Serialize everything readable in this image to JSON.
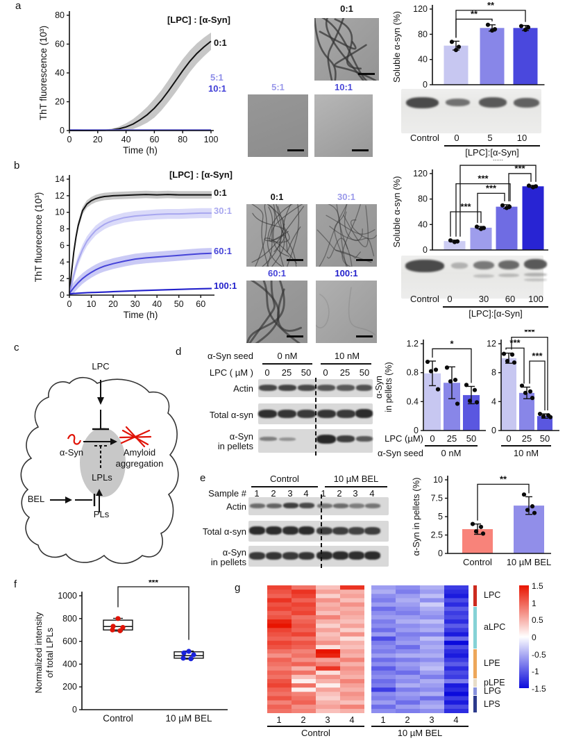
{
  "panel_a": {
    "label": "a",
    "legend": "[LPC] : [α-Syn]",
    "curve_labels": [
      "0:1",
      "5:1",
      "10:1"
    ],
    "em_labels": [
      "0:1",
      "5:1",
      "10:1"
    ],
    "gel_lanes": [
      "Control",
      "0",
      "5",
      "10"
    ],
    "gel_xlabel": "[LPC]:[α-Syn]"
  },
  "panel_b": {
    "label": "b",
    "legend": "[LPC] : [α-Syn]",
    "curve_labels": [
      "0:1",
      "30:1",
      "60:1",
      "100:1"
    ],
    "em_labels": [
      "0:1",
      "30:1",
      "60:1",
      "100:1"
    ],
    "gel_lanes": [
      "Control",
      "0",
      "30",
      "60",
      "100"
    ],
    "gel_xlabel": "[LPC]:[α-Syn]"
  },
  "panel_c": {
    "label": "c",
    "lpc": "LPC",
    "asyn": "α-Syn",
    "amyloid_1": "Amyloid",
    "amyloid_2": "aggregation",
    "lpls": "LPLs",
    "bel": "BEL",
    "pls": "PLs"
  },
  "panel_d": {
    "label": "d",
    "seed_label": "α-Syn seed",
    "groups": [
      "0 nM",
      "10 nM"
    ],
    "lpc_label": "LPC ( µM )",
    "doses": [
      "0",
      "25",
      "50",
      "0",
      "25",
      "50"
    ],
    "rows": [
      "Actin",
      "Total α-syn",
      "α-Syn",
      "in pellets"
    ],
    "axis_lpc": "LPC (µM)",
    "axis_doses": [
      "0",
      "25",
      "50",
      "0",
      "25",
      "50"
    ],
    "axis_seed": "α-Syn seed",
    "axis_groups": [
      "0 nM",
      "10 nM"
    ]
  },
  "panel_e": {
    "label": "e",
    "groups": [
      "Control",
      "10 µM BEL"
    ],
    "sample_label": "Sample #",
    "sample_nums": [
      "1",
      "2",
      "3",
      "4",
      "1",
      "2",
      "3",
      "4"
    ],
    "rows": [
      "Actin",
      "Total α-syn",
      "α-Syn",
      "in pellets"
    ]
  },
  "panel_f": {
    "label": "f"
  },
  "panel_g": {
    "label": "g",
    "col_nums": [
      "1",
      "2",
      "3",
      "4",
      "1",
      "2",
      "3",
      "4"
    ],
    "groups": [
      "Control",
      "10 µM BEL"
    ],
    "row_groups": [
      {
        "name": "LPC",
        "rows": 5,
        "color": "#cc2a1e"
      },
      {
        "name": "aLPC",
        "rows": 10,
        "color": "#85d2d6"
      },
      {
        "name": "LPE",
        "rows": 7,
        "color": "#eda75a"
      },
      {
        "name": "pLPE",
        "rows": 2,
        "color": "#e8ddc8"
      },
      {
        "name": "LPG",
        "rows": 2,
        "color": "#8892dd"
      },
      {
        "name": "LPS",
        "rows": 4,
        "color": "#2c3a8c"
      }
    ],
    "colorbar_ticks": [
      "1.5",
      "1",
      "0.5",
      "0",
      "-0.5",
      "-1",
      "-1.5"
    ]
  },
  "chart_data": [
    {
      "id": "tht_a",
      "type": "line",
      "title": "",
      "xlabel": "Time (h)",
      "ylabel": "ThT fluorescence (10³)",
      "legend": "[LPC] : [α-Syn]",
      "xlim": [
        0,
        100
      ],
      "ylim": [
        0,
        80
      ],
      "xticks": [
        0,
        20,
        40,
        60,
        80,
        100
      ],
      "yticks": [
        0,
        20,
        40,
        60,
        80
      ],
      "x": [
        0,
        5,
        10,
        15,
        20,
        25,
        30,
        35,
        40,
        45,
        50,
        55,
        60,
        65,
        70,
        75,
        80,
        85,
        90,
        95,
        100
      ],
      "series": [
        {
          "name": "0:1",
          "color": "#111111",
          "band_color": "rgba(0,0,0,0.22)",
          "band": [
            0.2,
            0.2,
            0.2,
            0.2,
            0.3,
            0.5,
            0.8,
            1.5,
            2.5,
            3.5,
            4.5,
            5.5,
            6.5,
            7,
            7.5,
            8,
            8,
            7.5,
            7,
            6.5,
            6
          ],
          "values": [
            0,
            0,
            0,
            0,
            0.1,
            0.2,
            0.5,
            1.2,
            2.5,
            4.5,
            7.5,
            11,
            15.5,
            21,
            27.5,
            34.5,
            41.5,
            48,
            53.5,
            58,
            62
          ]
        },
        {
          "name": "5:1",
          "color": "#8d8de8",
          "band_color": "rgba(120,120,230,0.25)",
          "band": 0.15,
          "values": [
            0.5,
            0.5,
            0.45,
            0.45,
            0.45,
            0.45,
            0.4,
            0.4,
            0.4,
            0.4,
            0.4,
            0.4,
            0.4,
            0.4,
            0.4,
            0.4,
            0.4,
            0.4,
            0.4,
            0.4,
            0.4
          ]
        },
        {
          "name": "10:1",
          "color": "#3f3dd6",
          "band_color": "rgba(60,60,210,0.25)",
          "band": 0.1,
          "values": [
            0.2,
            0.2,
            0.2,
            0.2,
            0.2,
            0.2,
            0.2,
            0.2,
            0.2,
            0.2,
            0.2,
            0.2,
            0.2,
            0.2,
            0.2,
            0.2,
            0.2,
            0.2,
            0.2,
            0.2,
            0.2
          ]
        }
      ]
    },
    {
      "id": "bar_a",
      "type": "bar",
      "ylabel": "Soluble α-syn (%)",
      "ylim": [
        0,
        120
      ],
      "yticks": [
        "0",
        "40",
        "80",
        "120"
      ],
      "values": [
        62,
        90,
        90
      ],
      "errors": [
        7,
        5,
        4
      ],
      "dots": [
        [
          68,
          60,
          55
        ],
        [
          95,
          88,
          86
        ],
        [
          93,
          91,
          87
        ]
      ],
      "colors": [
        "#c7c7f1",
        "#8886e8",
        "#4a48dd"
      ],
      "sig": [
        {
          "a": 0,
          "b": 1,
          "label": "**",
          "y": 104
        },
        {
          "a": 0,
          "b": 2,
          "label": "**",
          "y": 118
        }
      ]
    },
    {
      "id": "tht_b",
      "type": "line",
      "xlabel": "Time (h)",
      "ylabel": "ThT fluorecence (10³)",
      "legend": "[LPC] : [α-Syn]",
      "xlim": [
        0,
        65
      ],
      "ylim": [
        0,
        14
      ],
      "xticks": [
        0,
        10,
        20,
        30,
        40,
        50,
        60
      ],
      "yticks": [
        0,
        2,
        4,
        6,
        8,
        10,
        12,
        14
      ],
      "x": [
        0,
        1,
        2,
        3,
        4,
        6,
        8,
        10,
        12,
        14,
        16,
        18,
        20,
        25,
        30,
        35,
        40,
        45,
        50,
        55,
        60,
        65
      ],
      "series": [
        {
          "name": "0:1",
          "color": "#111111",
          "band_color": "rgba(0,0,0,0.22)",
          "band": 0.45,
          "values": [
            0.3,
            2.8,
            5.2,
            7.0,
            8.4,
            10.2,
            11.0,
            11.4,
            11.65,
            11.8,
            11.9,
            11.95,
            12.0,
            12.05,
            12.1,
            12.15,
            12.1,
            12.15,
            12.1,
            12.1,
            12.1,
            12.1
          ]
        },
        {
          "name": "30:1",
          "color": "#a7a6ef",
          "band_color": "rgba(150,150,238,0.35)",
          "band": 0.6,
          "values": [
            0.2,
            1.3,
            2.4,
            3.4,
            4.2,
            5.5,
            6.5,
            7.2,
            7.8,
            8.2,
            8.55,
            8.8,
            9.0,
            9.35,
            9.55,
            9.65,
            9.75,
            9.8,
            9.8,
            9.85,
            9.9,
            9.9
          ]
        },
        {
          "name": "60:1",
          "color": "#4543d8",
          "band_color": "rgba(90,90,225,0.32)",
          "band": 0.65,
          "values": [
            0.2,
            0.55,
            0.9,
            1.2,
            1.5,
            2.0,
            2.4,
            2.75,
            3.05,
            3.3,
            3.5,
            3.65,
            3.8,
            4.1,
            4.35,
            4.5,
            4.6,
            4.7,
            4.8,
            4.9,
            5.0,
            5.05
          ]
        },
        {
          "name": "100:1",
          "color": "#2220cb",
          "band_color": "rgba(40,40,200,0.3)",
          "band": 0.1,
          "values": [
            0.15,
            0.17,
            0.2,
            0.21,
            0.23,
            0.26,
            0.29,
            0.31,
            0.33,
            0.35,
            0.37,
            0.39,
            0.42,
            0.47,
            0.52,
            0.57,
            0.61,
            0.65,
            0.69,
            0.73,
            0.77,
            0.8
          ]
        }
      ]
    },
    {
      "id": "bar_b",
      "type": "bar",
      "ylabel": "Soluble α-syn (%)",
      "ylim": [
        0,
        120
      ],
      "yticks": [
        "0",
        "40",
        "80",
        "120"
      ],
      "values": [
        14,
        35,
        68,
        100
      ],
      "errors": [
        1.5,
        2,
        3,
        1.5
      ],
      "dots": [
        [
          15,
          13.5,
          12.5
        ],
        [
          36.5,
          34.5,
          33
        ],
        [
          70,
          68,
          66
        ],
        [
          101,
          100,
          98.5
        ]
      ],
      "colors": [
        "#cdcdf3",
        "#9e9dec",
        "#6f6ce3",
        "#2824d3"
      ],
      "sig": [
        {
          "a": 0,
          "b": 1,
          "label": "***",
          "y": 60,
          "oa": -6,
          "ob": 0
        },
        {
          "a": 1,
          "b": 2,
          "label": "***",
          "y": 89,
          "oa": -5,
          "ob": -3
        },
        {
          "a": 0,
          "b": 2,
          "label": "***",
          "y": 104,
          "oa": 2,
          "ob": 5
        },
        {
          "a": 2,
          "b": 3,
          "label": "***",
          "y": 120,
          "oa": 3,
          "ob": -3
        },
        {
          "a": 0,
          "b": 3,
          "label": "***",
          "y": 133,
          "oa": 8,
          "ob": 4
        }
      ]
    },
    {
      "id": "bar_d1",
      "type": "bar",
      "ylabel": [
        "α-Syn",
        "in pellets (%)"
      ],
      "ylim": [
        0,
        1.2
      ],
      "yticks": [
        "0",
        "0.4",
        "0.8",
        "1.2"
      ],
      "values": [
        0.79,
        0.66,
        0.49
      ],
      "errors": [
        0.17,
        0.22,
        0.12
      ],
      "dots": [
        [
          0.95,
          0.84,
          0.82,
          0.57
        ],
        [
          0.87,
          0.7,
          0.68,
          0.37
        ],
        [
          0.63,
          0.56,
          0.41,
          0.39
        ]
      ],
      "colors": [
        "#c7c7f1",
        "#8886e8",
        "#5a57e0"
      ],
      "sig": [
        {
          "a": 0,
          "b": 2,
          "label": "*",
          "y": 1.13
        }
      ]
    },
    {
      "id": "bar_d2",
      "type": "bar",
      "ylim": [
        0,
        12
      ],
      "yticks": [
        "0",
        "4",
        "8",
        "12"
      ],
      "values": [
        10,
        5.2,
        2
      ],
      "errors": [
        0.7,
        0.8,
        0.3
      ],
      "dots": [
        [
          10.6,
          10.5,
          9.6,
          9.4
        ],
        [
          6.2,
          5.4,
          5.2,
          4.5
        ],
        [
          2.3,
          2.1,
          1.95,
          1.85
        ]
      ],
      "colors": [
        "#c7c7f1",
        "#8886e8",
        "#5a57e0"
      ],
      "sig": [
        {
          "a": 0,
          "b": 1,
          "label": "***",
          "y": 11.4,
          "oa": -4,
          "ob": -4
        },
        {
          "a": 1,
          "b": 2,
          "label": "***",
          "y": 9.6,
          "oa": 4,
          "ob": 0
        },
        {
          "a": 0,
          "b": 2,
          "label": "***",
          "y": 12.9,
          "oa": 4,
          "ob": 4
        }
      ]
    },
    {
      "id": "bar_e",
      "type": "bar",
      "ylabel": "α-Syn in pellets (%)",
      "ylim": [
        0,
        10
      ],
      "yticks": [
        "0",
        "2.5",
        "5",
        "7.5",
        "10"
      ],
      "xticklabels": [
        "Control",
        "10 µM BEL"
      ],
      "values": [
        3.3,
        6.5
      ],
      "errors": [
        0.7,
        1.2
      ],
      "dots": [
        [
          4.0,
          3.6,
          3.0,
          2.7
        ],
        [
          8.0,
          6.4,
          5.9,
          5.5
        ]
      ],
      "colors": [
        "#f8837a",
        "#918ee9"
      ],
      "sig": [
        {
          "a": 0,
          "b": 1,
          "label": "**",
          "y": 9.4
        }
      ]
    },
    {
      "id": "box_f",
      "type": "box",
      "ylabel": [
        "Normalized intensity",
        "of total LPLs"
      ],
      "ylim": [
        0,
        1000
      ],
      "yticks": [
        "0",
        "200",
        "400",
        "600",
        "800",
        "1000"
      ],
      "categories": [
        "Control",
        "10 µM BEL"
      ],
      "boxes": [
        {
          "low": 690,
          "q1": 700,
          "med": 730,
          "q3": 786,
          "high": 802,
          "points": [
            800,
            732,
            722,
            700,
            693
          ],
          "color": "#e01408"
        },
        {
          "low": 444,
          "q1": 452,
          "med": 474,
          "q3": 508,
          "high": 515,
          "points": [
            512,
            498,
            482,
            452,
            447
          ],
          "color": "#1a22dd"
        }
      ],
      "sig": "***"
    },
    {
      "id": "heatmap_g",
      "type": "heatmap",
      "vmin": -1.5,
      "vmax": 1.5,
      "pos_color": "#e81400",
      "neg_color": "#0b0bdc",
      "col_groups": [
        "Control",
        "10 µM BEL"
      ],
      "matrix": [
        [
          1.2,
          0.9,
          0.4,
          1.3,
          -0.6,
          -0.7,
          -0.5,
          -1.2
        ],
        [
          1.1,
          1.3,
          0.6,
          0.5,
          -0.5,
          -0.8,
          -0.6,
          -1.3
        ],
        [
          1.0,
          1.2,
          0.3,
          0.6,
          -0.7,
          -0.6,
          -0.4,
          -1.4
        ],
        [
          1.3,
          1.0,
          0.7,
          0.4,
          -0.8,
          -0.5,
          -0.7,
          -1.1
        ],
        [
          1.1,
          1.2,
          0.5,
          0.7,
          -0.6,
          -0.6,
          -0.3,
          -1.3
        ],
        [
          1.2,
          1.1,
          0.6,
          0.5,
          -0.9,
          -0.7,
          -0.5,
          -1.0
        ],
        [
          1.0,
          1.2,
          0.4,
          0.6,
          -0.7,
          -0.8,
          -0.6,
          -1.2
        ],
        [
          1.1,
          0.9,
          0.8,
          0.5,
          -0.6,
          -0.6,
          -0.7,
          -1.1
        ],
        [
          1.4,
          1.0,
          0.5,
          0.4,
          -0.8,
          -0.5,
          -0.4,
          -1.3
        ],
        [
          1.5,
          1.1,
          0.3,
          0.6,
          -0.7,
          -0.7,
          -0.6,
          -1.0
        ],
        [
          1.2,
          1.0,
          0.6,
          0.3,
          -0.9,
          -0.6,
          -0.5,
          -1.2
        ],
        [
          1.1,
          1.2,
          0.4,
          0.7,
          -0.6,
          -0.8,
          -0.8,
          -1.4
        ],
        [
          1.0,
          0.9,
          0.5,
          0.2,
          -1.1,
          -0.7,
          -0.4,
          -0.9
        ],
        [
          1.2,
          1.1,
          0.7,
          0.5,
          -0.8,
          -0.6,
          -0.6,
          -1.5
        ],
        [
          1.1,
          1.0,
          0.2,
          0.4,
          -0.7,
          -0.9,
          -0.5,
          -1.1
        ],
        [
          0.9,
          0.8,
          1.5,
          0.6,
          -0.8,
          -0.7,
          -0.6,
          -1.3
        ],
        [
          0.7,
          0.9,
          1.4,
          0.5,
          -0.6,
          -0.5,
          -0.5,
          -1.4
        ],
        [
          1.0,
          0.7,
          0.6,
          0.8,
          -0.9,
          -0.8,
          -0.7,
          -1.2
        ],
        [
          0.9,
          1.0,
          0.8,
          0.5,
          -0.7,
          -0.6,
          -0.5,
          -1.0
        ],
        [
          0.8,
          0.5,
          1.3,
          0.7,
          -1.0,
          -0.7,
          -0.4,
          -1.3
        ],
        [
          1.0,
          0.9,
          0.2,
          0.6,
          -0.8,
          -0.9,
          -0.6,
          -1.1
        ],
        [
          0.9,
          0.4,
          0.7,
          0.5,
          -0.7,
          -0.6,
          -0.8,
          -1.2
        ],
        [
          1.1,
          0.1,
          0.5,
          0.8,
          -0.9,
          -0.7,
          -0.5,
          -0.8
        ],
        [
          1.2,
          0.9,
          0.1,
          0.6,
          -0.8,
          -0.5,
          -0.6,
          -1.4
        ],
        [
          1.0,
          0.1,
          0.6,
          0.5,
          -1.2,
          -0.8,
          -0.7,
          -1.3
        ],
        [
          0.9,
          0.8,
          0.4,
          0.7,
          -0.7,
          -0.6,
          -0.5,
          -1.5
        ],
        [
          1.1,
          0.9,
          0.3,
          0.6,
          -0.8,
          -0.7,
          -0.9,
          -1.2
        ],
        [
          0.8,
          1.0,
          0.5,
          0.4,
          -0.6,
          -0.9,
          -0.6,
          -1.4
        ],
        [
          1.0,
          0.7,
          0.6,
          0.8,
          -0.9,
          -0.6,
          -0.5,
          -1.1
        ],
        [
          0.9,
          0.8,
          0.4,
          0.5,
          -0.7,
          -0.8,
          -0.7,
          -1.3
        ]
      ]
    }
  ]
}
